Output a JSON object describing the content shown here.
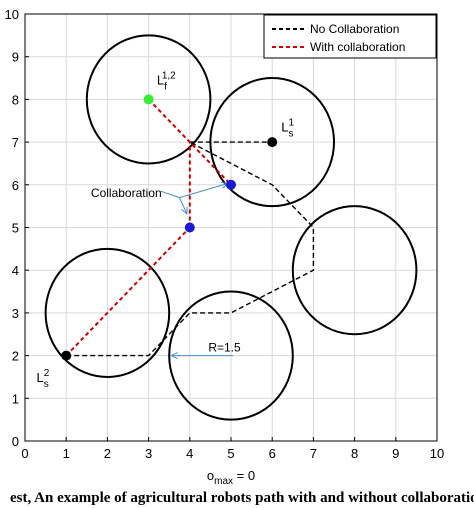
{
  "chart_data": {
    "type": "scatter",
    "xlabel": "o_max = 0",
    "xlabel_main": "o",
    "xlabel_sub": "max",
    "xlabel_rest": " = 0",
    "xlim": [
      0,
      10
    ],
    "ylim": [
      0,
      10
    ],
    "xticks": [
      "0",
      "1",
      "2",
      "3",
      "4",
      "5",
      "6",
      "7",
      "8",
      "9",
      "10"
    ],
    "yticks": [
      "0",
      "1",
      "2",
      "3",
      "4",
      "5",
      "6",
      "7",
      "8",
      "9",
      "10"
    ],
    "grid": true,
    "legend_position": "top-right",
    "legend": [
      {
        "label": "No Collaboration",
        "color": "#000000",
        "style": "dashed"
      },
      {
        "label": "With collaboration",
        "color": "#cc0000",
        "style": "dashed"
      }
    ],
    "obstacles": [
      {
        "cx": 3,
        "cy": 8,
        "r": 1.5
      },
      {
        "cx": 6,
        "cy": 7,
        "r": 1.5
      },
      {
        "cx": 8,
        "cy": 4,
        "r": 1.5
      },
      {
        "cx": 2,
        "cy": 3,
        "r": 1.5
      },
      {
        "cx": 5,
        "cy": 2,
        "r": 1.5
      }
    ],
    "series": [
      {
        "name": "No Collaboration",
        "color": "#000000",
        "x": [
          1,
          3,
          4,
          5,
          7,
          7,
          6,
          4
        ],
        "y": [
          2,
          2,
          3,
          3,
          4,
          5,
          6,
          7
        ]
      },
      {
        "name": "No Collaboration",
        "color": "#000000",
        "x": [
          4,
          5,
          6
        ],
        "y": [
          7,
          7,
          7
        ]
      },
      {
        "name": "With collaboration",
        "color": "#cc0000",
        "x": [
          1,
          4
        ],
        "y": [
          2,
          5
        ]
      },
      {
        "name": "With collaboration",
        "color": "#cc0000",
        "x": [
          3,
          5
        ],
        "y": [
          8,
          6
        ]
      },
      {
        "name": "With collaboration",
        "color": "#cc0000",
        "x": [
          4,
          4
        ],
        "y": [
          5,
          7
        ]
      }
    ],
    "points": [
      {
        "x": 3,
        "y": 8,
        "color": "#33ee33"
      },
      {
        "x": 6,
        "y": 7,
        "color": "#000000"
      },
      {
        "x": 5,
        "y": 6,
        "color": "#1a1ad6"
      },
      {
        "x": 4,
        "y": 5,
        "color": "#1a1ad6"
      },
      {
        "x": 1,
        "y": 2,
        "color": "#000000"
      }
    ],
    "annotations": [
      {
        "text": "Collaboration",
        "x": 2.7,
        "y": 5.8
      },
      {
        "text": "R=1.5",
        "x": 4.5,
        "y": 2.2
      },
      {
        "text": "L_f^{1,2}",
        "main": "L",
        "sub": "f",
        "sup": "1,2",
        "x": 3.2,
        "y": 8.2
      },
      {
        "text": "L_s^{1}",
        "main": "L",
        "sub": "s",
        "sup": "1",
        "x": 6.2,
        "y": 7.1
      },
      {
        "text": "L_s^{2}",
        "main": "L",
        "sub": "s",
        "sup": "2",
        "x": 0.3,
        "y": 1.4
      }
    ]
  },
  "bottom_text": "est, An example of agricultural robots path with and without collaboration"
}
